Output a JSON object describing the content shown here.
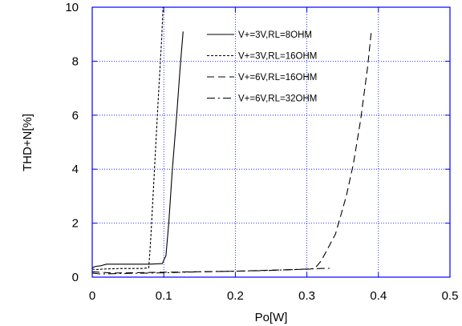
{
  "chart_data": {
    "type": "line",
    "title": "",
    "xlabel": "Po[W]",
    "ylabel": "THD+N[%]",
    "xlim": [
      0,
      0.5
    ],
    "ylim": [
      0,
      10
    ],
    "xticks": [
      0,
      0.1,
      0.2,
      0.3,
      0.4,
      0.5
    ],
    "xtick_labels": [
      "0",
      "0.1",
      "0.2",
      "0.3",
      "0.4",
      "0.5"
    ],
    "yticks": [
      0,
      2,
      4,
      6,
      8,
      10
    ],
    "ytick_labels": [
      "0",
      "2",
      "4",
      "6",
      "8",
      "10"
    ],
    "grid": true,
    "legend_position": "top-right",
    "series": [
      {
        "name": "V+=3V,RL=8OHM",
        "dash": "solid",
        "x": [
          0,
          0.005,
          0.012,
          0.02,
          0.05,
          0.08,
          0.098,
          0.103,
          0.107,
          0.112,
          0.118,
          0.123,
          0.127
        ],
        "y": [
          0.35,
          0.4,
          0.42,
          0.48,
          0.48,
          0.48,
          0.5,
          0.8,
          2.0,
          4.0,
          6.0,
          7.8,
          9.1
        ]
      },
      {
        "name": "V+=3V,RL=16OHM",
        "dash": "short",
        "x": [
          0,
          0.005,
          0.015,
          0.04,
          0.07,
          0.079,
          0.082,
          0.087,
          0.092,
          0.097,
          0.099
        ],
        "y": [
          0.3,
          0.28,
          0.3,
          0.32,
          0.32,
          0.35,
          1.5,
          4.0,
          6.5,
          8.8,
          10
        ]
      },
      {
        "name": "V+=6V,RL=16OHM",
        "dash": "long",
        "x": [
          0,
          0.03,
          0.1,
          0.2,
          0.28,
          0.305,
          0.312,
          0.32,
          0.34,
          0.355,
          0.365,
          0.375,
          0.385,
          0.39
        ],
        "y": [
          0.2,
          0.15,
          0.18,
          0.22,
          0.28,
          0.3,
          0.35,
          0.6,
          1.6,
          3.0,
          4.2,
          5.8,
          7.8,
          9.1
        ]
      },
      {
        "name": "V+=6V,RL=32OHM",
        "dash": "dashdot",
        "x": [
          0,
          0.01,
          0.05,
          0.1,
          0.15,
          0.2,
          0.25,
          0.3,
          0.32,
          0.335
        ],
        "y": [
          0.15,
          0.12,
          0.14,
          0.16,
          0.2,
          0.22,
          0.25,
          0.3,
          0.32,
          0.33
        ]
      }
    ]
  }
}
